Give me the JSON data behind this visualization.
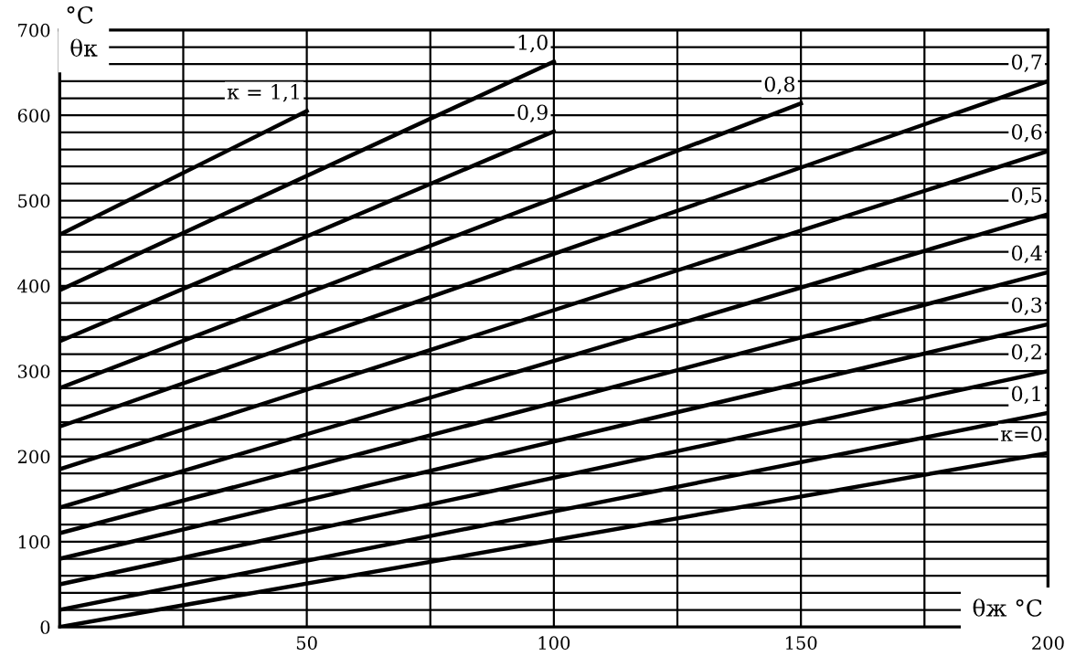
{
  "chart_data": {
    "type": "line",
    "xlabel": "θж °C",
    "ylabel": "θк",
    "annotations": [
      "°C"
    ],
    "xlim": [
      0,
      200
    ],
    "ylim": [
      0,
      700
    ],
    "xticks": [
      {
        "value": 0,
        "label": null
      },
      {
        "value": 25,
        "label": null
      },
      50,
      {
        "value": 75,
        "label": null
      },
      100,
      {
        "value": 125,
        "label": null
      },
      150,
      {
        "value": 175,
        "label": null
      },
      200
    ],
    "yticks": [
      0,
      {
        "value": 20,
        "label": null
      },
      {
        "value": 40,
        "label": null
      },
      {
        "value": 60,
        "label": null
      },
      {
        "value": 80,
        "label": null
      },
      100,
      {
        "value": 120,
        "label": null
      },
      {
        "value": 140,
        "label": null
      },
      {
        "value": 160,
        "label": null
      },
      {
        "value": 180,
        "label": null
      },
      200,
      {
        "value": 220,
        "label": null
      },
      {
        "value": 240,
        "label": null
      },
      {
        "value": 260,
        "label": null
      },
      {
        "value": 280,
        "label": null
      },
      300,
      {
        "value": 320,
        "label": null
      },
      {
        "value": 340,
        "label": null
      },
      {
        "value": 360,
        "label": null
      },
      {
        "value": 380,
        "label": null
      },
      400,
      {
        "value": 420,
        "label": null
      },
      {
        "value": 440,
        "label": null
      },
      {
        "value": 460,
        "label": null
      },
      {
        "value": 480,
        "label": null
      },
      500,
      {
        "value": 520,
        "label": null
      },
      {
        "value": 540,
        "label": null
      },
      {
        "value": 560,
        "label": null
      },
      {
        "value": 580,
        "label": null
      },
      600,
      {
        "value": 620,
        "label": null
      },
      {
        "value": 640,
        "label": null
      },
      {
        "value": 660,
        "label": null
      },
      {
        "value": 680,
        "label": null
      },
      700
    ],
    "grid": true,
    "legend": false,
    "marker": "none",
    "line_style": "solid",
    "series": [
      {
        "name": "к = 1,1",
        "color": "#000000",
        "x": [
          0,
          50
        ],
        "values": [
          460,
          605
        ]
      },
      {
        "name": "1,0",
        "color": "#000000",
        "x": [
          0,
          100
        ],
        "values": [
          395,
          663
        ]
      },
      {
        "name": "0,9",
        "color": "#000000",
        "x": [
          0,
          100
        ],
        "values": [
          335,
          581
        ]
      },
      {
        "name": "0,8",
        "color": "#000000",
        "x": [
          0,
          150
        ],
        "values": [
          280,
          614
        ]
      },
      {
        "name": "0,7",
        "color": "#000000",
        "x": [
          0,
          200
        ],
        "values": [
          235,
          640
        ]
      },
      {
        "name": "0,6",
        "color": "#000000",
        "x": [
          0,
          200
        ],
        "values": [
          185,
          558
        ]
      },
      {
        "name": "0,5",
        "color": "#000000",
        "x": [
          0,
          200
        ],
        "values": [
          140,
          484
        ]
      },
      {
        "name": "0,4",
        "color": "#000000",
        "x": [
          0,
          200
        ],
        "values": [
          110,
          416
        ]
      },
      {
        "name": "0,3",
        "color": "#000000",
        "x": [
          0,
          200
        ],
        "values": [
          80,
          355
        ]
      },
      {
        "name": "0,2",
        "color": "#000000",
        "x": [
          0,
          200
        ],
        "values": [
          50,
          300
        ]
      },
      {
        "name": "0,1",
        "color": "#000000",
        "x": [
          0,
          200
        ],
        "values": [
          20,
          251
        ]
      },
      {
        "name": "к=0",
        "color": "#000000",
        "x": [
          0,
          200
        ],
        "values": [
          0,
          204
        ]
      }
    ]
  }
}
